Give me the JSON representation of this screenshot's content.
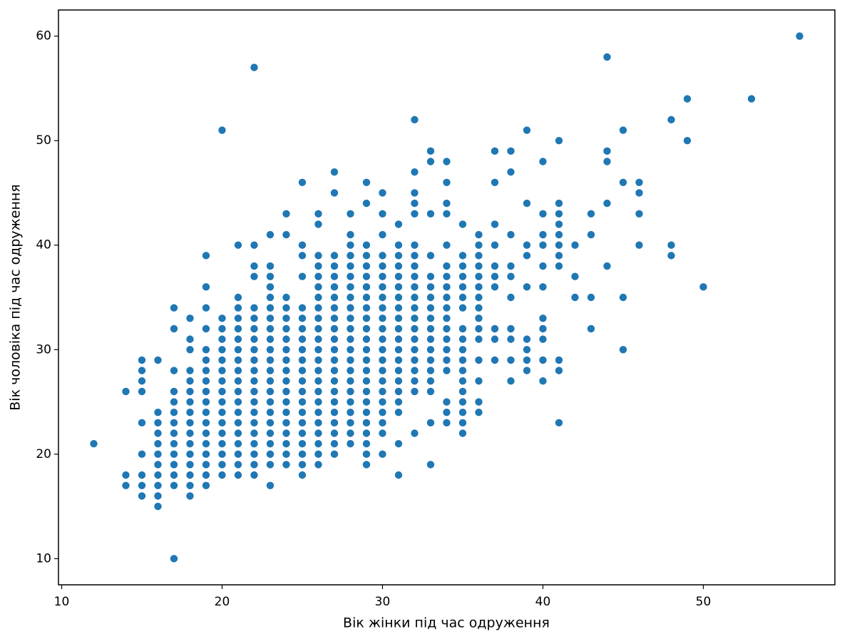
{
  "chart_data": {
    "type": "scatter",
    "x_label": "Вік жінки під час одруження",
    "y_label": "Вік чоловіка під час одруження",
    "color": "#1f77b4",
    "xlim": [
      9.8,
      58.2
    ],
    "xticks": [
      10,
      20,
      30,
      40,
      50
    ],
    "ylim": [
      7.5,
      62.5
    ],
    "yticks": [
      10,
      20,
      30,
      40,
      50,
      60
    ],
    "columns": [
      {
        "x": 12,
        "y": [
          21
        ]
      },
      {
        "x": 14,
        "y": [
          17,
          18,
          26
        ]
      },
      {
        "x": 15,
        "y": [
          16,
          17,
          18,
          20,
          23,
          26,
          27,
          28,
          29
        ]
      },
      {
        "x": 16,
        "y": [
          15,
          16,
          17,
          18,
          19,
          20,
          21,
          22,
          23,
          24,
          29
        ]
      },
      {
        "x": 17,
        "y": [
          10,
          17,
          18,
          19,
          20,
          21,
          22,
          23,
          24,
          25,
          26,
          28,
          32,
          34
        ]
      },
      {
        "x": 18,
        "y": [
          16,
          17,
          18,
          19,
          20,
          21,
          22,
          23,
          24,
          25,
          26,
          27,
          28,
          30,
          31,
          33
        ]
      },
      {
        "x": 19,
        "y": [
          17,
          18,
          19,
          20,
          21,
          22,
          23,
          24,
          25,
          26,
          27,
          28,
          29,
          30,
          32,
          34,
          36,
          39
        ]
      },
      {
        "x": 20,
        "y": [
          18,
          19,
          20,
          21,
          22,
          23,
          24,
          25,
          26,
          27,
          28,
          29,
          30,
          31,
          32,
          33,
          51
        ]
      },
      {
        "x": 21,
        "y": [
          18,
          19,
          20,
          21,
          22,
          23,
          24,
          25,
          26,
          27,
          28,
          29,
          30,
          31,
          32,
          33,
          34,
          35,
          40
        ]
      },
      {
        "x": 22,
        "y": [
          18,
          19,
          20,
          21,
          22,
          23,
          24,
          25,
          26,
          27,
          28,
          29,
          30,
          31,
          32,
          33,
          34,
          37,
          38,
          40,
          57
        ]
      },
      {
        "x": 23,
        "y": [
          17,
          19,
          20,
          21,
          22,
          23,
          24,
          25,
          26,
          27,
          28,
          29,
          30,
          31,
          32,
          33,
          34,
          35,
          36,
          37,
          38,
          41
        ]
      },
      {
        "x": 24,
        "y": [
          19,
          20,
          21,
          22,
          23,
          24,
          25,
          26,
          27,
          28,
          29,
          30,
          31,
          32,
          33,
          34,
          35,
          41,
          43
        ]
      },
      {
        "x": 25,
        "y": [
          18,
          19,
          20,
          21,
          22,
          23,
          24,
          25,
          26,
          27,
          28,
          29,
          30,
          31,
          32,
          33,
          34,
          37,
          39,
          40,
          46
        ]
      },
      {
        "x": 26,
        "y": [
          19,
          20,
          21,
          22,
          23,
          24,
          25,
          26,
          27,
          28,
          29,
          30,
          31,
          32,
          33,
          34,
          35,
          36,
          37,
          38,
          39,
          42,
          43
        ]
      },
      {
        "x": 27,
        "y": [
          20,
          21,
          22,
          23,
          24,
          25,
          26,
          27,
          28,
          29,
          30,
          31,
          32,
          33,
          34,
          35,
          36,
          37,
          38,
          39,
          45,
          47
        ]
      },
      {
        "x": 28,
        "y": [
          21,
          22,
          23,
          24,
          25,
          26,
          27,
          28,
          29,
          30,
          31,
          32,
          33,
          34,
          35,
          36,
          37,
          38,
          39,
          40,
          41,
          43
        ]
      },
      {
        "x": 29,
        "y": [
          19,
          20,
          21,
          22,
          23,
          24,
          25,
          26,
          27,
          28,
          29,
          30,
          31,
          32,
          33,
          34,
          35,
          36,
          37,
          38,
          39,
          40,
          44,
          46
        ]
      },
      {
        "x": 30,
        "y": [
          20,
          22,
          23,
          24,
          25,
          26,
          27,
          28,
          29,
          30,
          31,
          32,
          33,
          34,
          35,
          36,
          37,
          38,
          39,
          41,
          43,
          45
        ]
      },
      {
        "x": 31,
        "y": [
          18,
          21,
          24,
          25,
          26,
          27,
          28,
          29,
          30,
          31,
          32,
          33,
          34,
          35,
          36,
          37,
          38,
          39,
          40,
          42
        ]
      },
      {
        "x": 32,
        "y": [
          22,
          26,
          27,
          28,
          29,
          30,
          31,
          32,
          33,
          34,
          35,
          36,
          37,
          38,
          39,
          40,
          43,
          44,
          45,
          47,
          52
        ]
      },
      {
        "x": 33,
        "y": [
          19,
          23,
          26,
          27,
          28,
          29,
          30,
          31,
          32,
          33,
          34,
          35,
          36,
          37,
          39,
          43,
          48,
          49
        ]
      },
      {
        "x": 34,
        "y": [
          23,
          24,
          25,
          28,
          29,
          30,
          31,
          32,
          33,
          34,
          35,
          36,
          37,
          38,
          40,
          43,
          44,
          46,
          48
        ]
      },
      {
        "x": 35,
        "y": [
          22,
          23,
          24,
          25,
          26,
          27,
          28,
          29,
          30,
          31,
          32,
          34,
          35,
          36,
          37,
          38,
          39,
          42
        ]
      },
      {
        "x": 36,
        "y": [
          24,
          25,
          27,
          29,
          31,
          32,
          33,
          34,
          35,
          36,
          37,
          38,
          39,
          40,
          41
        ]
      },
      {
        "x": 37,
        "y": [
          29,
          31,
          32,
          36,
          37,
          38,
          40,
          42,
          46,
          49
        ]
      },
      {
        "x": 38,
        "y": [
          27,
          29,
          31,
          32,
          35,
          37,
          38,
          41,
          47,
          49
        ]
      },
      {
        "x": 39,
        "y": [
          28,
          29,
          30,
          31,
          36,
          39,
          40,
          44,
          51
        ]
      },
      {
        "x": 40,
        "y": [
          27,
          29,
          31,
          32,
          33,
          36,
          38,
          40,
          41,
          43,
          48
        ]
      },
      {
        "x": 41,
        "y": [
          23,
          28,
          29,
          38,
          39,
          40,
          41,
          42,
          43,
          44,
          50
        ]
      },
      {
        "x": 42,
        "y": [
          35,
          37,
          40
        ]
      },
      {
        "x": 43,
        "y": [
          32,
          35,
          41,
          43
        ]
      },
      {
        "x": 44,
        "y": [
          38,
          44,
          48,
          49,
          58
        ]
      },
      {
        "x": 45,
        "y": [
          30,
          35,
          46,
          51
        ]
      },
      {
        "x": 46,
        "y": [
          40,
          43,
          45,
          46
        ]
      },
      {
        "x": 48,
        "y": [
          39,
          40,
          52
        ]
      },
      {
        "x": 49,
        "y": [
          50,
          54
        ]
      },
      {
        "x": 50,
        "y": [
          36
        ]
      },
      {
        "x": 53,
        "y": [
          54
        ]
      },
      {
        "x": 56,
        "y": [
          60
        ]
      }
    ]
  }
}
